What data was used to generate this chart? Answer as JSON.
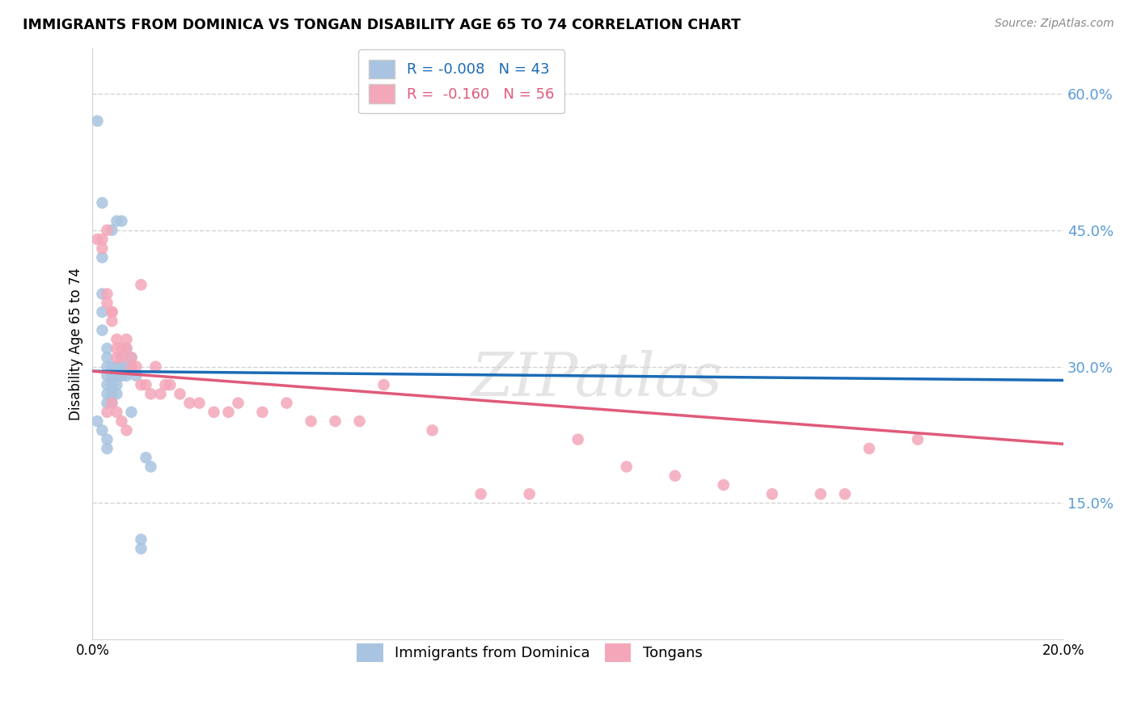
{
  "title": "IMMIGRANTS FROM DOMINICA VS TONGAN DISABILITY AGE 65 TO 74 CORRELATION CHART",
  "source": "Source: ZipAtlas.com",
  "ylabel": "Disability Age 65 to 74",
  "xlim": [
    0.0,
    0.2
  ],
  "ylim": [
    0.0,
    0.65
  ],
  "ytick_positions": [
    0.15,
    0.3,
    0.45,
    0.6
  ],
  "xtick_positions": [
    0.0,
    0.2
  ],
  "legend_labels": [
    "Immigrants from Dominica",
    "Tongans"
  ],
  "R_dominica": -0.008,
  "N_dominica": 43,
  "R_tongan": -0.16,
  "N_tongan": 56,
  "color_dominica": "#a8c4e0",
  "color_tongan": "#f4a7b9",
  "line_color_dominica": "#1a6bb5",
  "line_color_tongan": "#e05a7a",
  "watermark": "ZIPatlas",
  "dominica_x": [
    0.001,
    0.002,
    0.002,
    0.002,
    0.002,
    0.002,
    0.003,
    0.003,
    0.003,
    0.003,
    0.003,
    0.003,
    0.003,
    0.004,
    0.004,
    0.004,
    0.004,
    0.004,
    0.005,
    0.005,
    0.005,
    0.005,
    0.006,
    0.006,
    0.006,
    0.007,
    0.007,
    0.007,
    0.008,
    0.008,
    0.009,
    0.01,
    0.01,
    0.011,
    0.012,
    0.001,
    0.002,
    0.003,
    0.003,
    0.004,
    0.005,
    0.006,
    0.008
  ],
  "dominica_y": [
    0.57,
    0.48,
    0.42,
    0.38,
    0.36,
    0.34,
    0.32,
    0.31,
    0.3,
    0.29,
    0.28,
    0.27,
    0.26,
    0.3,
    0.29,
    0.28,
    0.27,
    0.26,
    0.3,
    0.29,
    0.28,
    0.27,
    0.31,
    0.3,
    0.29,
    0.32,
    0.3,
    0.29,
    0.31,
    0.3,
    0.29,
    0.11,
    0.1,
    0.2,
    0.19,
    0.24,
    0.23,
    0.22,
    0.21,
    0.45,
    0.46,
    0.46,
    0.25
  ],
  "tongan_x": [
    0.001,
    0.002,
    0.002,
    0.003,
    0.003,
    0.003,
    0.004,
    0.004,
    0.004,
    0.005,
    0.005,
    0.005,
    0.006,
    0.006,
    0.007,
    0.007,
    0.008,
    0.008,
    0.009,
    0.01,
    0.01,
    0.011,
    0.012,
    0.013,
    0.014,
    0.015,
    0.016,
    0.018,
    0.02,
    0.022,
    0.025,
    0.028,
    0.03,
    0.035,
    0.04,
    0.045,
    0.05,
    0.055,
    0.06,
    0.07,
    0.08,
    0.09,
    0.1,
    0.11,
    0.12,
    0.13,
    0.14,
    0.15,
    0.155,
    0.16,
    0.003,
    0.004,
    0.005,
    0.006,
    0.007,
    0.17
  ],
  "tongan_y": [
    0.44,
    0.44,
    0.43,
    0.45,
    0.38,
    0.37,
    0.36,
    0.36,
    0.35,
    0.33,
    0.32,
    0.31,
    0.32,
    0.31,
    0.33,
    0.32,
    0.31,
    0.3,
    0.3,
    0.39,
    0.28,
    0.28,
    0.27,
    0.3,
    0.27,
    0.28,
    0.28,
    0.27,
    0.26,
    0.26,
    0.25,
    0.25,
    0.26,
    0.25,
    0.26,
    0.24,
    0.24,
    0.24,
    0.28,
    0.23,
    0.16,
    0.16,
    0.22,
    0.19,
    0.18,
    0.17,
    0.16,
    0.16,
    0.16,
    0.21,
    0.25,
    0.26,
    0.25,
    0.24,
    0.23,
    0.22
  ]
}
